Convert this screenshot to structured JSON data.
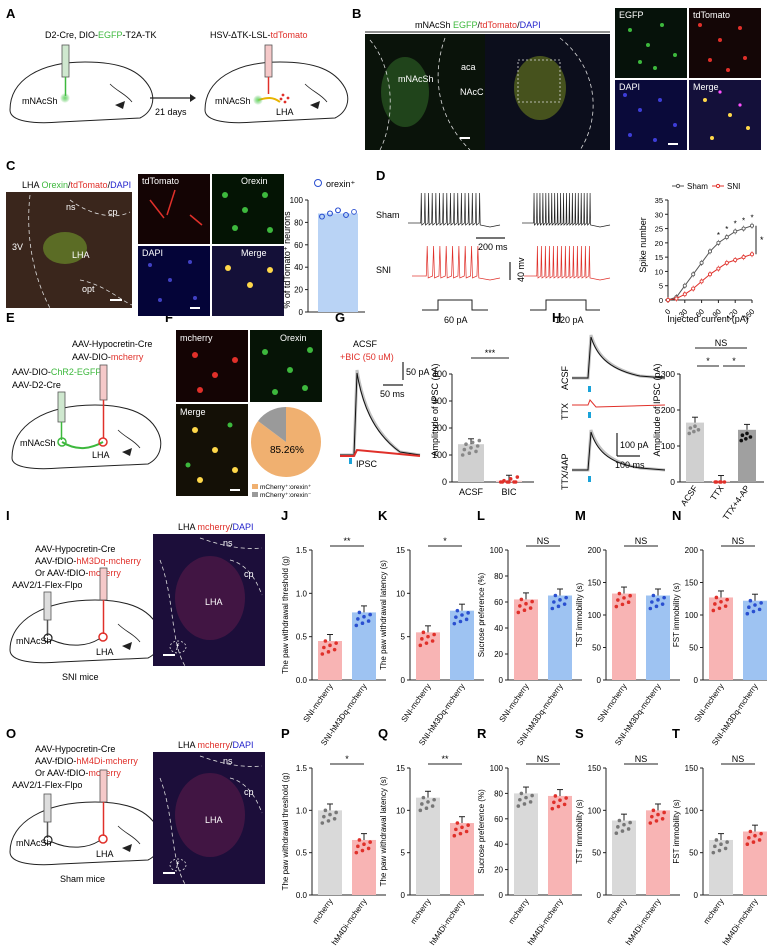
{
  "panels": [
    "A",
    "B",
    "C",
    "D",
    "E",
    "F",
    "G",
    "H",
    "I",
    "J",
    "K",
    "L",
    "M",
    "N",
    "O",
    "P",
    "Q",
    "R",
    "S",
    "T"
  ],
  "colors": {
    "green": "#3db83d",
    "red": "#e0302a",
    "blue": "#2222cc",
    "pink": "#f4a6a6",
    "lightblue": "#b9d3f5",
    "gray": "#cfcfcf",
    "micro_bg": "#111318",
    "pink_bar": "#f8b4b4",
    "blue_bar": "#9ec3f2"
  },
  "A": {
    "left_virus_pre": "D2-Cre, DIO-",
    "left_virus_green": "EGFP",
    "left_virus_post": "-T2A-TK",
    "right_virus_pre": "HSV-ΔTK-LSL-",
    "right_virus_red": "tdTomato",
    "days": "21 days",
    "region_left": "mNAcSh",
    "region_right": "mNAcSh",
    "target": "LHA"
  },
  "B": {
    "title_pre": "mNAcSh ",
    "title_green": "EGFP",
    "title_sep1": "/",
    "title_red": "tdTomato",
    "title_sep2": "/",
    "title_blue": "DAPI",
    "label_mnacsh": "mNAcSh",
    "label_aca": "aca",
    "label_nacc": "NAcC",
    "ch1": "EGFP",
    "ch2": "tdTomato",
    "ch3": "DAPI",
    "ch4": "Merge"
  },
  "C": {
    "title_pre": "LHA ",
    "title_green": "Orexin",
    "title_sep1": "/",
    "title_red": "tdTomato",
    "title_sep2": "/",
    "title_blue": "DAPI",
    "ns": "ns",
    "cp": "cp",
    "v3": "3V",
    "lha": "LHA",
    "opt": "opt",
    "ch1": "tdTomato",
    "ch2": "Orexin",
    "ch3": "DAPI",
    "ch4": "Merge",
    "legend": "orexin⁺",
    "ylabel": "% of tdTomato⁺ neurons",
    "yticks": [
      "0",
      "20",
      "40",
      "60",
      "80",
      "100"
    ]
  },
  "D": {
    "sham": "Sham",
    "sni": "SNI",
    "scale_time": "200 ms",
    "scale_mv": "40 mv",
    "i1": "60 pA",
    "i2": "120 pA",
    "legend_sham": "Sham",
    "legend_sni": "SNI",
    "ylabel": "Spike number",
    "xlabel": "Injected current (pA)",
    "yticks": [
      "0",
      "5",
      "10",
      "15",
      "20",
      "25",
      "30",
      "35"
    ],
    "xticks": [
      "0",
      "30",
      "60",
      "90",
      "120",
      "150"
    ],
    "star": "*"
  },
  "E": {
    "v1": "AAV-Hypocretin-Cre",
    "v2_pre": "AAV-DIO-",
    "v2_red": "mcherry",
    "v3_pre": "AAV-DIO-",
    "v3_green": "ChR2-EGFP",
    "v4": "AAV-D2-Cre",
    "r1": "mNAcSh",
    "r2": "LHA"
  },
  "F": {
    "ch1": "mcherry",
    "ch2": "Orexin",
    "ch3": "Merge",
    "pie_pct": "85.26%",
    "leg1": "mCherry⁺:orexin⁺",
    "leg2": "mCherry⁺:orexin⁻"
  },
  "G": {
    "acsf": "ACSF",
    "bic": "+BIC (50 uM)",
    "scale_pa": "50 pA",
    "scale_ms": "50 ms",
    "ipsc": "IPSC",
    "ylabel": "Amplitude of IPSC (pA)",
    "yticks": [
      "0",
      "100",
      "200",
      "300",
      "400"
    ],
    "cats": [
      "ACSF",
      "BIC"
    ],
    "sig": "***"
  },
  "H": {
    "t1": "ACSF",
    "t2": "TTX",
    "t3": "TTX/4AP",
    "scale_pa": "100 pA",
    "scale_ms": "100 ms",
    "ylabel": "Amplitude of IPSC (pA)",
    "yticks": [
      "0",
      "100",
      "200",
      "300"
    ],
    "cats": [
      "ACSF",
      "TTX",
      "TTX+4-AP"
    ],
    "ns": "NS",
    "s1": "*",
    "s2": "*"
  },
  "I": {
    "v1": "AAV-Hypocretin-Cre",
    "v2_pre": "AAV-fDIO-",
    "v2_red": "hM3Dq-mcherry",
    "v3_pre": "Or AAV-fDIO-",
    "v3_red": "mcherry",
    "v4": "AAV2/1-Flex-Flpo",
    "r1": "mNAcSh",
    "r2": "LHA",
    "mice": "SNI mice",
    "img_title_pre": "LHA ",
    "img_title_red": "mcherry",
    "img_title_sep": "/",
    "img_title_blue": "DAPI",
    "ns": "ns",
    "cp": "cp",
    "lha": "LHA",
    "f": "f"
  },
  "O": {
    "v1": "AAV-Hypocretin-Cre",
    "v2_pre": "AAV-fDIO-",
    "v2_red": "hM4Di-mcherry",
    "v3_pre": "Or AAV-fDIO-",
    "v3_red": "mcherry",
    "v4": "AAV2/1-Flex-Flpo",
    "r1": "mNAcSh",
    "r2": "LHA",
    "mice": "Sham mice",
    "img_title_pre": "LHA ",
    "img_title_red": "mcherry",
    "img_title_sep": "/",
    "img_title_blue": "DAPI",
    "ns": "ns",
    "cp": "cp",
    "lha": "LHA",
    "f": "f"
  },
  "chart_data": [
    {
      "panel": "C",
      "type": "bar",
      "categories": [
        ""
      ],
      "values": [
        88
      ],
      "ylabel": "% of tdTomato⁺ neurons",
      "ylim": [
        0,
        100
      ],
      "legend": "orexin⁺"
    },
    {
      "panel": "D",
      "type": "line",
      "xlabel": "Injected current (pA)",
      "ylabel": "Spike number",
      "ylim": [
        0,
        35
      ],
      "x": [
        0,
        15,
        30,
        45,
        60,
        75,
        90,
        105,
        120,
        135,
        150
      ],
      "series": [
        {
          "name": "Sham",
          "values": [
            0,
            1,
            5,
            9,
            13,
            17,
            20,
            22,
            24,
            25,
            26
          ]
        },
        {
          "name": "SNI",
          "values": [
            0,
            0.5,
            2,
            4,
            6.5,
            9,
            11,
            13,
            14,
            15,
            16
          ]
        }
      ]
    },
    {
      "panel": "G",
      "type": "bar",
      "categories": [
        "ACSF",
        "BIC"
      ],
      "values": [
        140,
        5
      ],
      "ylabel": "Amplitude of IPSC (pA)",
      "ylim": [
        0,
        400
      ]
    },
    {
      "panel": "H",
      "type": "bar",
      "categories": [
        "ACSF",
        "TTX",
        "TTX+4-AP"
      ],
      "values": [
        165,
        3,
        145
      ],
      "ylabel": "Amplitude of IPSC (pA)",
      "ylim": [
        0,
        300
      ]
    },
    {
      "panel": "J",
      "type": "bar",
      "categories": [
        "SNI-mcherry",
        "SNI-hM3Dq-mcherry"
      ],
      "values": [
        0.45,
        0.78
      ],
      "ylabel": "The paw withdrawal threshold (g)",
      "ylim": [
        0,
        1.5
      ],
      "yticks": [
        "0.0",
        "0.5",
        "1.0",
        "1.5"
      ],
      "sig": "**"
    },
    {
      "panel": "K",
      "type": "bar",
      "categories": [
        "SNI-mcherry",
        "SNI-hM3Dq-mcherry"
      ],
      "values": [
        5.5,
        8
      ],
      "ylabel": "The paw withdrawal latency (s)",
      "ylim": [
        0,
        15
      ],
      "yticks": [
        "0",
        "5",
        "10",
        "15"
      ],
      "sig": "*"
    },
    {
      "panel": "L",
      "type": "bar",
      "categories": [
        "SNI-mcherry",
        "SNI-hM3Dq-mcherry"
      ],
      "values": [
        62,
        65
      ],
      "ylabel": "Sucrose preference (%)",
      "ylim": [
        0,
        100
      ],
      "yticks": [
        "0",
        "20",
        "40",
        "60",
        "80",
        "100"
      ],
      "sig": "NS"
    },
    {
      "panel": "M",
      "type": "bar",
      "categories": [
        "SNI-mcherry",
        "SNI-hM3Dq-mcherry"
      ],
      "values": [
        133,
        130
      ],
      "ylabel": "TST immobility (s)",
      "ylim": [
        0,
        200
      ],
      "yticks": [
        "0",
        "50",
        "100",
        "150",
        "200"
      ],
      "sig": "NS"
    },
    {
      "panel": "N",
      "type": "bar",
      "categories": [
        "SNI-mcherry",
        "SNI-hM3Dq-mcherry"
      ],
      "values": [
        127,
        122
      ],
      "ylabel": "FST immobility (s)",
      "ylim": [
        0,
        200
      ],
      "yticks": [
        "0",
        "50",
        "100",
        "150",
        "200"
      ],
      "sig": "NS"
    },
    {
      "panel": "P",
      "type": "bar",
      "categories": [
        "mcherry",
        "hM4Di-mcherry"
      ],
      "values": [
        1.0,
        0.65
      ],
      "ylabel": "The paw withdrawal threshold (g)",
      "ylim": [
        0,
        1.5
      ],
      "yticks": [
        "0.0",
        "0.5",
        "1.0",
        "1.5"
      ],
      "sig": "*"
    },
    {
      "panel": "Q",
      "type": "bar",
      "categories": [
        "mcherry",
        "hM4Di-mcherry"
      ],
      "values": [
        11.5,
        8.5
      ],
      "ylabel": "The paw withdrawal latency (s)",
      "ylim": [
        0,
        15
      ],
      "yticks": [
        "0",
        "5",
        "10",
        "15"
      ],
      "sig": "**"
    },
    {
      "panel": "R",
      "type": "bar",
      "categories": [
        "mcherry",
        "hM4Di-mcherry"
      ],
      "values": [
        80,
        78
      ],
      "ylabel": "Sucrose preference (%)",
      "ylim": [
        0,
        100
      ],
      "yticks": [
        "0",
        "20",
        "40",
        "60",
        "80",
        "100"
      ],
      "sig": "NS"
    },
    {
      "panel": "S",
      "type": "bar",
      "categories": [
        "mcherry",
        "hM4Di-mcherry"
      ],
      "values": [
        88,
        100
      ],
      "ylabel": "TST immobility (s)",
      "ylim": [
        0,
        150
      ],
      "yticks": [
        "0",
        "50",
        "100",
        "150"
      ],
      "sig": "NS"
    },
    {
      "panel": "T",
      "type": "bar",
      "categories": [
        "mcherry",
        "hM4Di-mcherry"
      ],
      "values": [
        65,
        75
      ],
      "ylabel": "FST immobility (s)",
      "ylim": [
        0,
        150
      ],
      "yticks": [
        "0",
        "50",
        "100",
        "150"
      ],
      "sig": "NS"
    }
  ]
}
